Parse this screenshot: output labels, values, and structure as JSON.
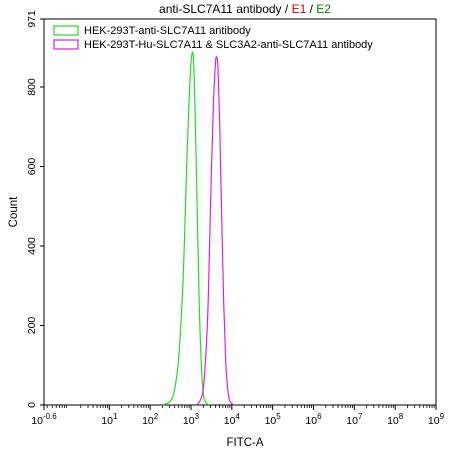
{
  "chart_data": {
    "type": "line",
    "title_parts": [
      {
        "text": "anti-SLC7A11 antibody / ",
        "color": "#000000"
      },
      {
        "text": "E1",
        "color": "#cc0000"
      },
      {
        "text": " / ",
        "color": "#000000"
      },
      {
        "text": "E2",
        "color": "#008000"
      }
    ],
    "xlabel": "FITC-A",
    "ylabel": "Count",
    "x_scale": "log",
    "xlim_log10": [
      -0.6,
      9
    ],
    "ylim": [
      0,
      971
    ],
    "x_tick_labels": [
      {
        "base": "10",
        "exp": "-0.6",
        "log10": -0.6
      },
      {
        "base": "10",
        "exp": "1",
        "log10": 1
      },
      {
        "base": "10",
        "exp": "2",
        "log10": 2
      },
      {
        "base": "10",
        "exp": "3",
        "log10": 3
      },
      {
        "base": "10",
        "exp": "4",
        "log10": 4
      },
      {
        "base": "10",
        "exp": "5",
        "log10": 5
      },
      {
        "base": "10",
        "exp": "6",
        "log10": 6
      },
      {
        "base": "10",
        "exp": "7",
        "log10": 7
      },
      {
        "base": "10",
        "exp": "8",
        "log10": 8
      },
      {
        "base": "10",
        "exp": "9",
        "log10": 9
      }
    ],
    "y_ticks": [
      {
        "label": "0",
        "value": 0
      },
      {
        "label": "200",
        "value": 200
      },
      {
        "label": "400",
        "value": 400
      },
      {
        "label": "600",
        "value": 600
      },
      {
        "label": "800",
        "value": 800
      },
      {
        "label": "971",
        "value": 971
      }
    ],
    "grid": false,
    "legend_position": "top-left",
    "series": [
      {
        "name": "HEK-293T-anti-SLC7A11 antibody",
        "color": "#22dd22",
        "x_log10": [
          2.3,
          2.5,
          2.6,
          2.7,
          2.8,
          2.85,
          2.9,
          2.95,
          3.0,
          3.03,
          3.06,
          3.1,
          3.15,
          3.2,
          3.25,
          3.3,
          3.35,
          3.45
        ],
        "y": [
          0,
          10,
          40,
          120,
          300,
          450,
          620,
          760,
          860,
          885,
          870,
          740,
          500,
          260,
          110,
          30,
          8,
          0
        ]
      },
      {
        "name": "HEK-293T-Hu-SLC7A11 & SLC3A2-anti-SLC7A11 antibody",
        "color": "#dd22dd",
        "x_log10": [
          3.15,
          3.3,
          3.4,
          3.45,
          3.5,
          3.55,
          3.6,
          3.63,
          3.66,
          3.7,
          3.75,
          3.8,
          3.85,
          3.9,
          3.95,
          4.05
        ],
        "y": [
          0,
          40,
          200,
          380,
          590,
          760,
          860,
          875,
          850,
          720,
          480,
          260,
          110,
          40,
          10,
          0
        ]
      }
    ]
  }
}
